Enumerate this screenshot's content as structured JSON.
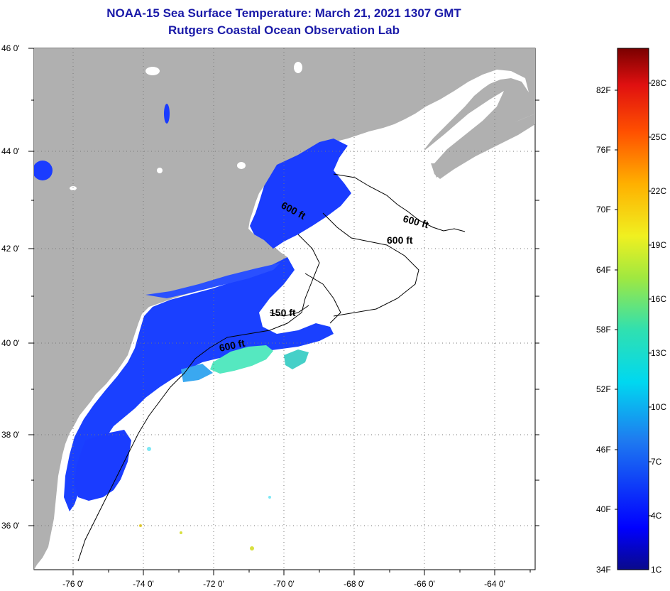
{
  "title": "NOAA-15 Sea Surface Temperature:  March 21, 2021 1307 GMT",
  "subtitle": "Rutgers Coastal Ocean Observation Lab",
  "lat_labels": [
    "46 0'",
    "44 0'",
    "42 0'",
    "40 0'",
    "38 0'",
    "36 0'"
  ],
  "lon_labels": [
    "-76 0'",
    "-74 0'",
    "-72 0'",
    "-70 0'",
    "-68 0'",
    "-66 0'",
    "-64 0'"
  ],
  "contours": [
    "600 ft",
    "600 ft",
    "600 ft",
    "150 ft",
    "600 ft"
  ],
  "colorbar": {
    "fahrenheit": [
      "82F",
      "76F",
      "70F",
      "64F",
      "58F",
      "52F",
      "46F",
      "40F",
      "34F"
    ],
    "celsius": [
      "28C",
      "25C",
      "22C",
      "19C",
      "16C",
      "13C",
      "10C",
      "7C",
      "4C",
      "1C"
    ]
  },
  "colors": {
    "land": "#b0b0b0",
    "water_nodata": "#ffffff",
    "cold_water": "#1a3cff",
    "warm_water": "#55e8c0",
    "title": "#1a1aa8"
  }
}
